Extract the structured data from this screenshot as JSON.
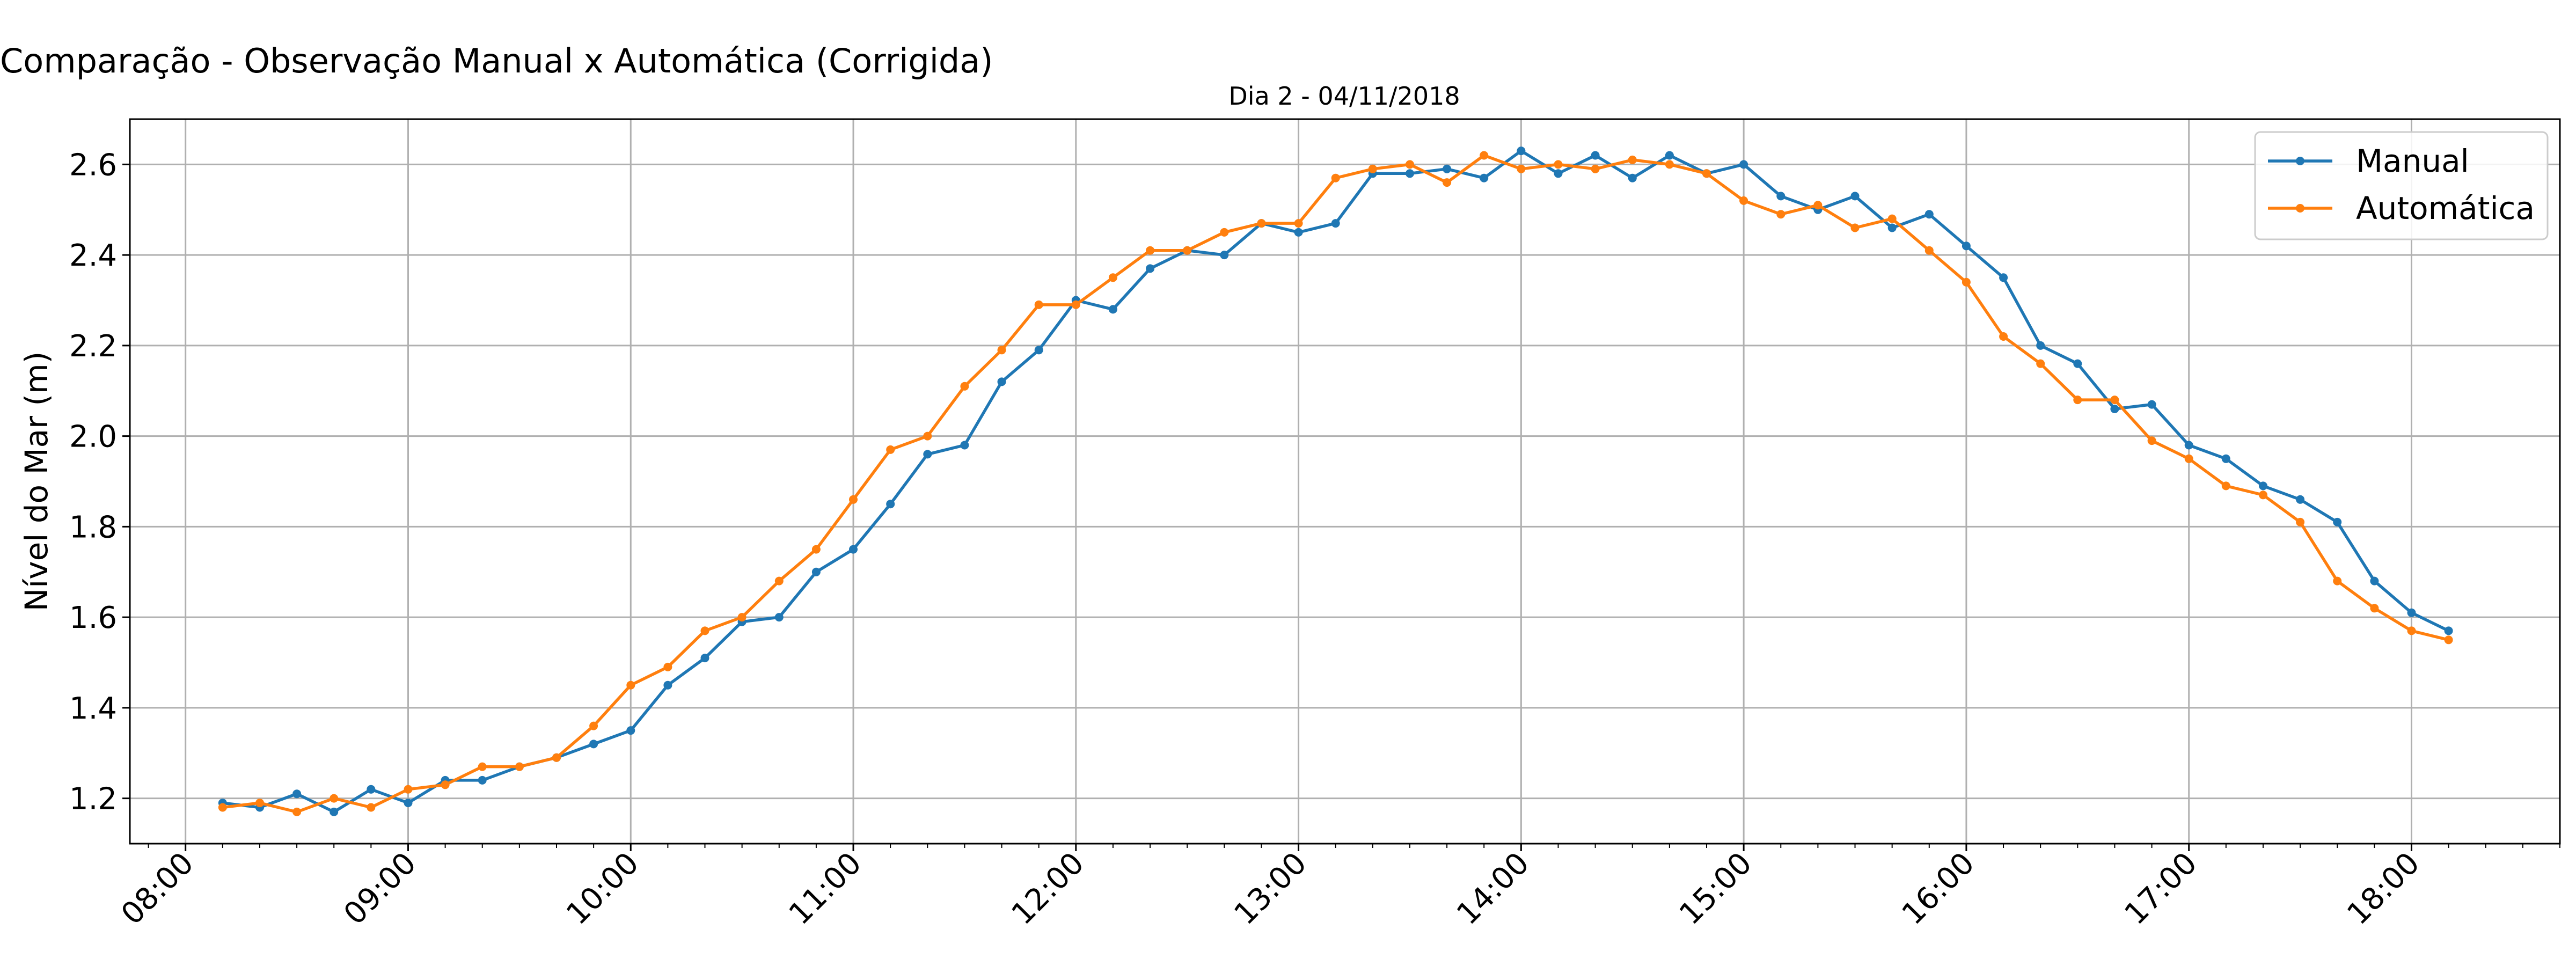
{
  "chart_data": {
    "type": "line",
    "suptitle": "Comparação - Observação Manual x Automática (Corrigida)",
    "title": "Dia 2 - 04/11/2018",
    "xlabel": "",
    "ylabel": "Nível do Mar (m)",
    "ylim": [
      1.1,
      2.7
    ],
    "xlim": [
      "07:45",
      "18:40"
    ],
    "yticks": [
      "1.2",
      "1.4",
      "1.6",
      "1.8",
      "2.0",
      "2.2",
      "2.4",
      "2.6"
    ],
    "xticks": [
      "08:00",
      "09:00",
      "10:00",
      "11:00",
      "12:00",
      "13:00",
      "14:00",
      "15:00",
      "16:00",
      "17:00",
      "18:00"
    ],
    "grid": true,
    "legend": "top-right",
    "x": [
      "08:10",
      "08:20",
      "08:30",
      "08:40",
      "08:50",
      "09:00",
      "09:10",
      "09:20",
      "09:30",
      "09:40",
      "09:50",
      "10:00",
      "10:10",
      "10:20",
      "10:30",
      "10:40",
      "10:50",
      "11:00",
      "11:10",
      "11:20",
      "11:30",
      "11:40",
      "11:50",
      "12:00",
      "12:10",
      "12:20",
      "12:30",
      "12:40",
      "12:50",
      "13:00",
      "13:10",
      "13:20",
      "13:30",
      "13:40",
      "13:50",
      "14:00",
      "14:10",
      "14:20",
      "14:30",
      "14:40",
      "14:50",
      "15:00",
      "15:10",
      "15:20",
      "15:30",
      "15:40",
      "15:50",
      "16:00",
      "16:10",
      "16:20",
      "16:30",
      "16:40",
      "16:50",
      "17:00",
      "17:10",
      "17:20",
      "17:30",
      "17:40",
      "17:50",
      "18:00",
      "18:10"
    ],
    "series": [
      {
        "name": "Manual",
        "color": "#1f77b4",
        "values": [
          1.19,
          1.18,
          1.21,
          1.17,
          1.22,
          1.19,
          1.24,
          1.24,
          1.27,
          1.29,
          1.32,
          1.35,
          1.45,
          1.51,
          1.59,
          1.6,
          1.7,
          1.75,
          1.85,
          1.96,
          1.98,
          2.12,
          2.19,
          2.3,
          2.28,
          2.37,
          2.41,
          2.4,
          2.47,
          2.45,
          2.47,
          2.58,
          2.58,
          2.59,
          2.57,
          2.63,
          2.58,
          2.62,
          2.57,
          2.62,
          2.58,
          2.6,
          2.53,
          2.5,
          2.53,
          2.46,
          2.49,
          2.42,
          2.35,
          2.2,
          2.16,
          2.06,
          2.07,
          1.98,
          1.95,
          1.89,
          1.86,
          1.81,
          1.68,
          1.61,
          1.57
        ]
      },
      {
        "name": "Automática",
        "color": "#ff7f0e",
        "values": [
          1.18,
          1.19,
          1.17,
          1.2,
          1.18,
          1.22,
          1.23,
          1.27,
          1.27,
          1.29,
          1.36,
          1.45,
          1.49,
          1.57,
          1.6,
          1.68,
          1.75,
          1.86,
          1.97,
          2.0,
          2.11,
          2.19,
          2.29,
          2.29,
          2.35,
          2.41,
          2.41,
          2.45,
          2.47,
          2.47,
          2.57,
          2.59,
          2.6,
          2.56,
          2.62,
          2.59,
          2.6,
          2.59,
          2.61,
          2.6,
          2.58,
          2.52,
          2.49,
          2.51,
          2.46,
          2.48,
          2.41,
          2.34,
          2.22,
          2.16,
          2.08,
          2.08,
          1.99,
          1.95,
          1.89,
          1.87,
          1.81,
          1.68,
          1.62,
          1.57,
          1.55
        ]
      }
    ]
  }
}
